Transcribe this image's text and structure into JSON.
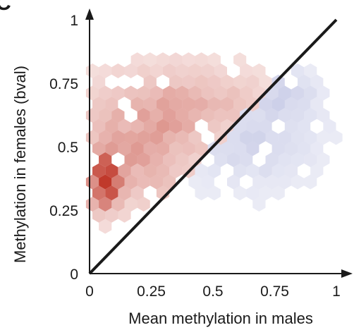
{
  "chart_data": {
    "type": "heatmap",
    "subtype": "hexbin",
    "panel_letter": "C",
    "xlabel": "Mean methylation in males",
    "ylabel": "Methylation in females (bval)",
    "xlim": [
      0,
      1
    ],
    "ylim": [
      0,
      1
    ],
    "x_ticks": [
      0,
      0.25,
      0.5,
      0.75,
      1
    ],
    "x_tick_labels": [
      "0",
      "0.25",
      "0.5",
      "0.75",
      "1"
    ],
    "y_ticks": [
      0,
      0.25,
      0.5,
      0.75,
      1
    ],
    "y_tick_labels": [
      "0",
      "0.25",
      "0.5",
      "0.75",
      "1"
    ],
    "grid": false,
    "reference_line": {
      "from": [
        0,
        0
      ],
      "to": [
        1,
        1
      ]
    },
    "colors": {
      "female_biased": "#c0392b",
      "male_biased": "#5b63b5",
      "axis": "#1a1a1a"
    },
    "density_clusters": [
      {
        "group": "female_biased",
        "center": [
          0.06,
          0.37
        ],
        "spread": [
          0.04,
          0.07
        ],
        "peak": 1.0
      },
      {
        "group": "female_biased",
        "center": [
          0.2,
          0.5
        ],
        "spread": [
          0.18,
          0.16
        ],
        "peak": 0.35
      },
      {
        "group": "female_biased",
        "center": [
          0.45,
          0.68
        ],
        "spread": [
          0.2,
          0.1
        ],
        "peak": 0.22
      },
      {
        "group": "male_biased",
        "center": [
          0.65,
          0.55
        ],
        "spread": [
          0.18,
          0.14
        ],
        "peak": 0.32
      },
      {
        "group": "male_biased",
        "center": [
          0.8,
          0.72
        ],
        "spread": [
          0.08,
          0.06
        ],
        "peak": 0.25
      }
    ]
  }
}
